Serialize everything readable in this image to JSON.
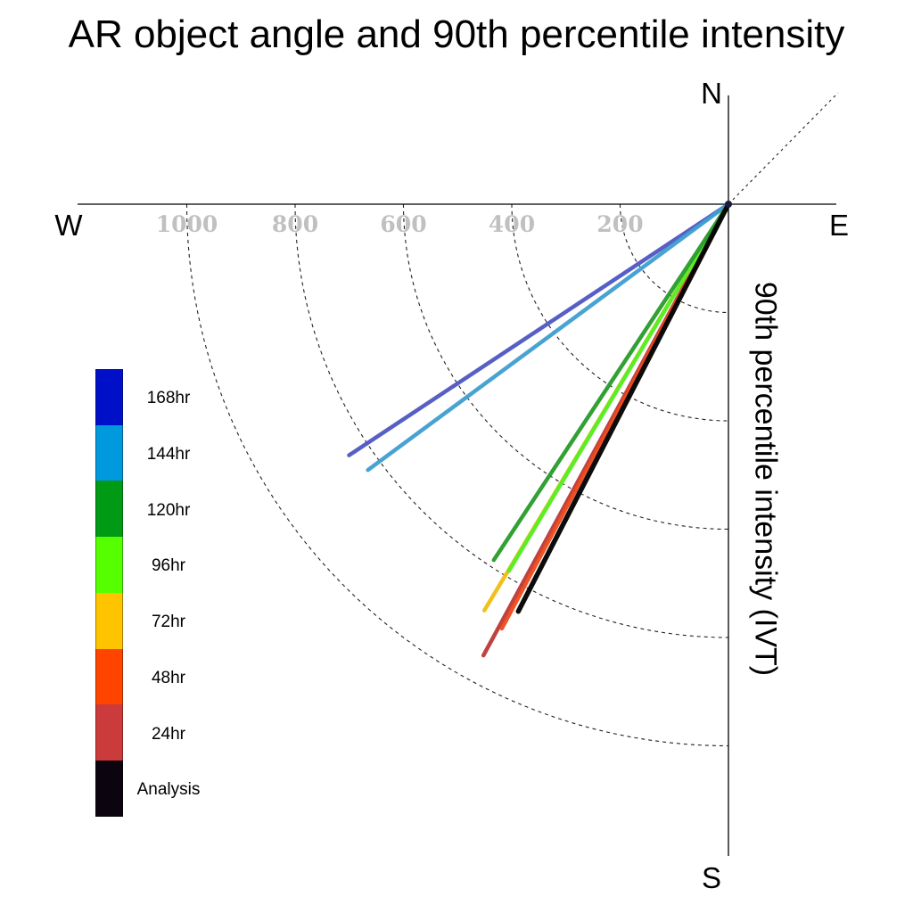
{
  "chart_data": {
    "type": "polar-vector",
    "title": "AR object angle and 90th percentile intensity",
    "ylabel": "90th percentile intensity (IVT)",
    "xlabel": "",
    "compass": {
      "north": "N",
      "south": "S",
      "east": "E",
      "west": "W"
    },
    "radial_ticks": [
      "200",
      "400",
      "600",
      "800",
      "1000"
    ],
    "radial_tick_values": [
      200,
      400,
      600,
      800,
      1000
    ],
    "radius_lim": [
      0,
      1200
    ],
    "angle_convention": "degrees clockwise from north",
    "grid": "dashed circular arcs (southwest quadrant) and dashed northeast diagonal",
    "legend_placement": "left",
    "legend_type": "color key",
    "series": [
      {
        "name": "168hr",
        "color": "#0010c8",
        "line_color": "#4f57c2",
        "angle": 236.5,
        "intensity": 840
      },
      {
        "name": "144hr",
        "color": "#0099dd",
        "line_color": "#3f9fd0",
        "angle": 233.6,
        "intensity": 827
      },
      {
        "name": "120hr",
        "color": "#009a15",
        "line_color": "#289b2a",
        "angle": 213.4,
        "intensity": 787
      },
      {
        "name": "96hr",
        "color": "#55ff00",
        "line_color": "#55f026",
        "angle": 210.9,
        "intensity": 789
      },
      {
        "name": "72hr",
        "color": "#ffc400",
        "line_color": "#f2bc10",
        "angle": 211.0,
        "intensity": 875
      },
      {
        "name": "48hr",
        "color": "#ff4400",
        "line_color": "#ee4a1a",
        "angle": 208.1,
        "intensity": 888
      },
      {
        "name": "24hr",
        "color": "#cc3b3b",
        "line_color": "#bc3838",
        "angle": 208.5,
        "intensity": 948
      },
      {
        "name": "Analysis",
        "color": "#0c0510",
        "line_color": "#000000",
        "angle": 207.3,
        "intensity": 846
      }
    ]
  }
}
